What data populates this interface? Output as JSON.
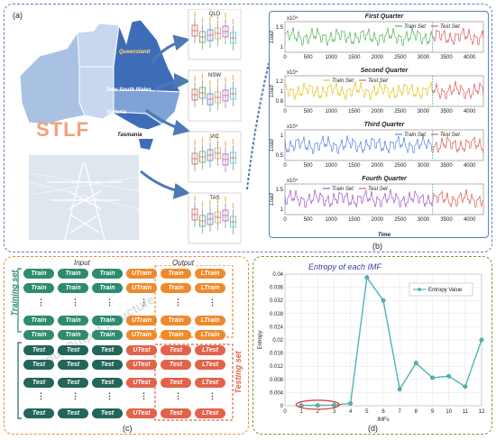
{
  "panel_labels": {
    "a": "(a)",
    "b": "(b)",
    "c": "(c)",
    "d": "(d)"
  },
  "map": {
    "stlf": "STLF",
    "regions": [
      "Queensland",
      "New South Wales",
      "Victoria",
      "Tasmania"
    ],
    "colors": {
      "light": "#a9c2e4",
      "mid": "#7fa3d6",
      "dark": "#3d6cb8",
      "pale": "#c6d7ee"
    }
  },
  "boxplot_titles": [
    "QLD",
    "NSW",
    "VIC",
    "TAS"
  ],
  "load_charts": {
    "x_ticks": [
      "0",
      "500",
      "1000",
      "1500",
      "2000",
      "2500",
      "3000",
      "3500",
      "4000"
    ],
    "xlabel": "Time",
    "ylabel": "Load",
    "exponent": "x10⁴",
    "quarters": [
      {
        "title": "First Quarter",
        "train_color": "#3aa83a",
        "test_color": "#d94040",
        "yticks": [
          "1",
          "1.5"
        ]
      },
      {
        "title": "Second Quarter",
        "train_color": "#e6b800",
        "test_color": "#d94040",
        "yticks": [
          "0.8",
          "1",
          "1.2"
        ]
      },
      {
        "title": "Third Quarter",
        "train_color": "#3a6fd8",
        "test_color": "#d94040",
        "yticks": [
          "0.5",
          "1"
        ]
      },
      {
        "title": "Fourth Quarter",
        "train_color": "#8a3fc2",
        "test_color": "#d94040",
        "yticks": [
          "1",
          "1.5"
        ]
      }
    ],
    "legend_train": "Train Set",
    "legend_test": "Test Set"
  },
  "dataset": {
    "input_label": "Input",
    "output_label": "Output",
    "training_set_label": "Training set",
    "testing_set_label": "Testing set",
    "train": "Train",
    "utrain": "UTrain",
    "ltrain": "LTrain",
    "test": "Test",
    "utest": "UTest",
    "ltest": "LTest",
    "dots": "⋮",
    "watermark": "Input Output Structure"
  },
  "chart_data": {
    "type": "line",
    "title": "Entropy of each IMF",
    "xlabel": "IMFs",
    "ylabel": "Entropy",
    "x": [
      1,
      2,
      3,
      4,
      5,
      6,
      7,
      8,
      9,
      10,
      11,
      12
    ],
    "series": [
      {
        "name": "Entropy Value",
        "values": [
          0.0001,
          0.0001,
          0.0002,
          0.0007,
          0.039,
          0.032,
          0.005,
          0.013,
          0.0085,
          0.009,
          0.0058,
          0.02
        ],
        "color": "#4fb5b5"
      }
    ],
    "xlim": [
      0,
      12
    ],
    "ylim": [
      0,
      0.04
    ],
    "yticks": [
      0,
      0.004,
      0.008,
      0.012,
      0.016,
      0.02,
      0.024,
      0.028,
      0.032,
      0.036,
      0.04
    ],
    "grid": true,
    "legend_position": "top-right"
  }
}
